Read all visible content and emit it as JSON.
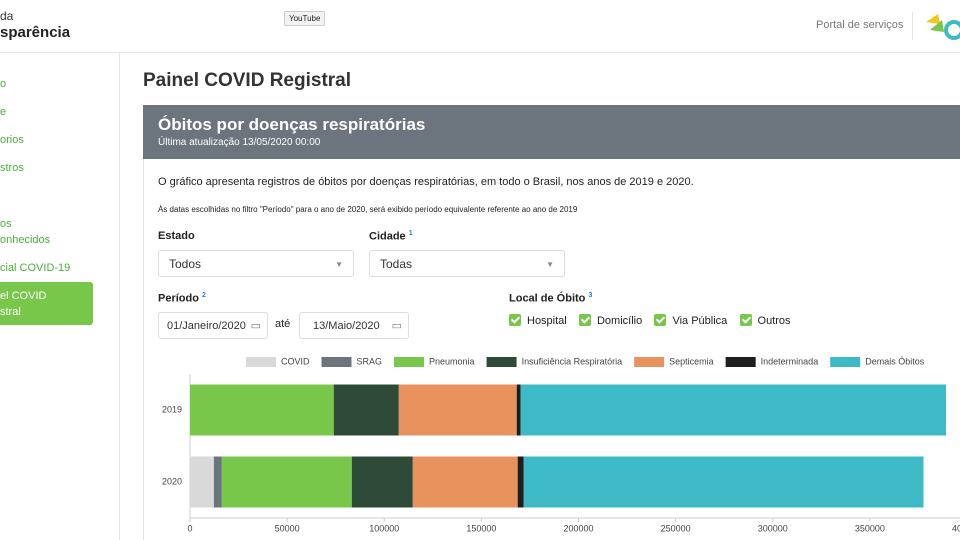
{
  "header": {
    "brand_top": "da",
    "brand_bottom": "sparência",
    "tooltip": "YouTube",
    "portal": "Portal de serviços"
  },
  "sidebar": {
    "items": [
      "o",
      "e",
      "orios",
      "stros",
      "os",
      "onhecidos",
      "cial COVID-19"
    ],
    "active": [
      "el COVID",
      "stral"
    ]
  },
  "page": {
    "title": "Painel COVID Registral",
    "card": {
      "title": "Óbitos por doenças respiratórias",
      "subtitle": "Última atualização 13/05/2020 00:00",
      "description": "O gráfico apresenta registros de óbitos por doenças respiratórias, em todo o Brasil, nos anos de 2019 e 2020.",
      "note": "Às datas escolhidas no filtro \"Período\" para o ano de 2020, será exibido período equivalente referente ao ano de 2019"
    },
    "form": {
      "estado": {
        "label": "Estado",
        "value": "Todos"
      },
      "cidade": {
        "label": "Cidade",
        "note": "1",
        "value": "Todas"
      },
      "periodo": {
        "label": "Período",
        "note": "2",
        "start": "01/Janeiro/2020",
        "separator": "até",
        "end": "13/Maio/2020"
      },
      "local": {
        "label": "Local de Óbito",
        "note": "3",
        "options": [
          "Hospital",
          "Domicílio",
          "Via Pública",
          "Outros"
        ]
      }
    }
  },
  "chart_data": {
    "type": "stacked-bar-horizontal",
    "categories": [
      "2019",
      "2020"
    ],
    "series": [
      {
        "name": "COVID",
        "color": "#d9d9d9",
        "values": [
          0,
          12300
        ]
      },
      {
        "name": "SRAG",
        "color": "#6c757d",
        "values": [
          0,
          4100
        ]
      },
      {
        "name": "Pneumonia",
        "color": "#78c74a",
        "values": [
          74000,
          66900
        ]
      },
      {
        "name": "Insuficiência Respiratória",
        "color": "#2d4b38",
        "values": [
          33500,
          31400
        ]
      },
      {
        "name": "Septicemia",
        "color": "#e8935e",
        "values": [
          60700,
          54000
        ]
      },
      {
        "name": "Indeterminada",
        "color": "#1e1e1e",
        "values": [
          2000,
          3100
        ]
      },
      {
        "name": "Demais Óbitos",
        "color": "#3ebac6",
        "values": [
          219000,
          205800
        ]
      }
    ],
    "xlim": [
      0,
      400000
    ],
    "xticks": [
      0,
      50000,
      100000,
      150000,
      200000,
      250000,
      300000,
      350000,
      400000
    ]
  }
}
